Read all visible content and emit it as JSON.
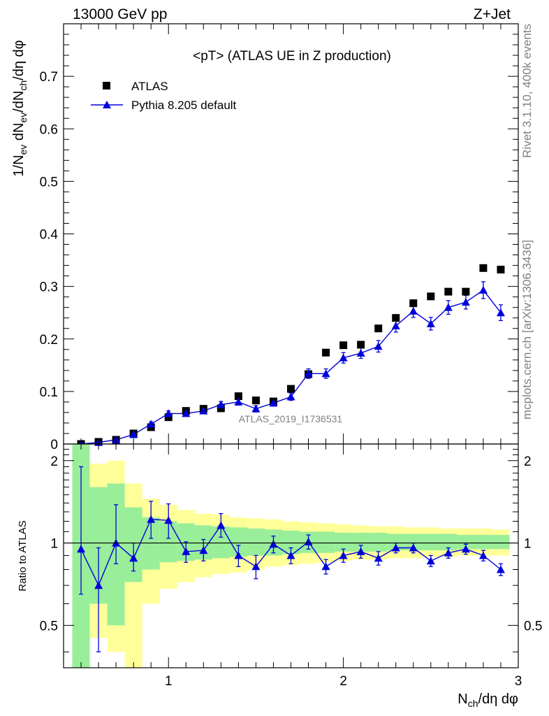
{
  "header": {
    "left": "13000 GeV pp",
    "right": "Z+Jet"
  },
  "side": {
    "rivet": "Rivet 3.1.10,  400k events",
    "mcplots": "mcplots.cern.ch [arXiv:1306.3436]"
  },
  "colors": {
    "mc": "#0000dd",
    "data": "#000000",
    "band_inner": "#99ee99",
    "band_outer": "#ffff99"
  },
  "chart_data": [
    {
      "type": "scatter",
      "title": "<pT> (ATLAS UE in Z production)",
      "analysis_label": "ATLAS_2019_I1736531",
      "xlabel": "N_ch/dη dφ",
      "ylabel": "1/N_ev dN_ev/dN_ch/dη dφ",
      "xlim": [
        0.4,
        3.0
      ],
      "ylim": [
        0,
        0.8
      ],
      "yticks": [
        0,
        0.1,
        0.2,
        0.3,
        0.4,
        0.5,
        0.6,
        0.7
      ],
      "ytick_labels": [
        "0",
        "0.1",
        "0.2",
        "0.3",
        "0.4",
        "0.5",
        "0.6",
        "0.7"
      ],
      "legend": [
        "ATLAS",
        "Pythia 8.205 default"
      ],
      "legend_position": "top-left",
      "x": [
        0.5,
        0.6,
        0.7,
        0.8,
        0.9,
        1.0,
        1.1,
        1.2,
        1.3,
        1.4,
        1.5,
        1.6,
        1.7,
        1.8,
        1.9,
        2.0,
        2.1,
        2.2,
        2.3,
        2.4,
        2.5,
        2.6,
        2.7,
        2.8,
        2.9
      ],
      "series": [
        {
          "name": "ATLAS",
          "values": [
            0.0,
            0.004,
            0.008,
            0.02,
            0.032,
            0.051,
            0.063,
            0.067,
            0.068,
            0.091,
            0.083,
            0.081,
            0.105,
            0.133,
            0.174,
            0.188,
            0.189,
            0.22,
            0.24,
            0.268,
            0.281,
            0.29,
            0.29,
            0.335,
            0.332
          ]
        },
        {
          "name": "Pythia 8.205 default",
          "values": [
            0.0,
            0.003,
            0.008,
            0.018,
            0.038,
            0.058,
            0.058,
            0.063,
            0.075,
            0.08,
            0.067,
            0.078,
            0.09,
            0.134,
            0.134,
            0.164,
            0.173,
            0.186,
            0.225,
            0.253,
            0.229,
            0.26,
            0.27,
            0.293,
            0.25
          ],
          "errors": [
            0.001,
            0.001,
            0.002,
            0.003,
            0.004,
            0.005,
            0.005,
            0.005,
            0.006,
            0.006,
            0.006,
            0.006,
            0.007,
            0.009,
            0.009,
            0.01,
            0.01,
            0.011,
            0.012,
            0.012,
            0.012,
            0.013,
            0.013,
            0.016,
            0.015
          ]
        }
      ]
    },
    {
      "type": "scatter",
      "ylabel": "Ratio to ATLAS",
      "xlabel": "N_ch/dη dφ",
      "xlim": [
        0.4,
        3.0
      ],
      "ylim": [
        0.35,
        2.3
      ],
      "yscale": "log",
      "yticks": [
        0.5,
        1,
        2
      ],
      "ytick_labels": [
        "0.5",
        "1",
        "2"
      ],
      "xticks": [
        1,
        2,
        3
      ],
      "xtick_labels": [
        "1",
        "2",
        "3"
      ],
      "reference": 1,
      "x": [
        0.5,
        0.6,
        0.7,
        0.8,
        0.9,
        1.0,
        1.1,
        1.2,
        1.3,
        1.4,
        1.5,
        1.6,
        1.7,
        1.8,
        1.9,
        2.0,
        2.1,
        2.2,
        2.3,
        2.4,
        2.5,
        2.6,
        2.7,
        2.8,
        2.9
      ],
      "bands": {
        "inner": [
          [
            0.2,
            3.0
          ],
          [
            0.6,
            1.6
          ],
          [
            0.5,
            1.65
          ],
          [
            0.72,
            1.35
          ],
          [
            0.8,
            1.24
          ],
          [
            0.85,
            1.2
          ],
          [
            0.86,
            1.18
          ],
          [
            0.87,
            1.16
          ],
          [
            0.88,
            1.15
          ],
          [
            0.89,
            1.14
          ],
          [
            0.9,
            1.13
          ],
          [
            0.9,
            1.12
          ],
          [
            0.91,
            1.11
          ],
          [
            0.92,
            1.1
          ],
          [
            0.92,
            1.1
          ],
          [
            0.93,
            1.09
          ],
          [
            0.93,
            1.09
          ],
          [
            0.93,
            1.09
          ],
          [
            0.94,
            1.08
          ],
          [
            0.94,
            1.08
          ],
          [
            0.94,
            1.08
          ],
          [
            0.94,
            1.08
          ],
          [
            0.95,
            1.07
          ],
          [
            0.95,
            1.07
          ],
          [
            0.95,
            1.07
          ]
        ],
        "outer": [
          [
            0.2,
            3.0
          ],
          [
            0.45,
            1.95
          ],
          [
            0.4,
            2.0
          ],
          [
            0.35,
            1.65
          ],
          [
            0.6,
            1.45
          ],
          [
            0.68,
            1.38
          ],
          [
            0.72,
            1.32
          ],
          [
            0.75,
            1.28
          ],
          [
            0.77,
            1.27
          ],
          [
            0.78,
            1.24
          ],
          [
            0.8,
            1.23
          ],
          [
            0.82,
            1.22
          ],
          [
            0.83,
            1.2
          ],
          [
            0.84,
            1.19
          ],
          [
            0.85,
            1.18
          ],
          [
            0.86,
            1.17
          ],
          [
            0.87,
            1.16
          ],
          [
            0.87,
            1.15
          ],
          [
            0.88,
            1.15
          ],
          [
            0.88,
            1.14
          ],
          [
            0.89,
            1.14
          ],
          [
            0.89,
            1.13
          ],
          [
            0.9,
            1.13
          ],
          [
            0.9,
            1.13
          ],
          [
            0.9,
            1.12
          ]
        ]
      },
      "series": [
        {
          "name": "Pythia 8.205 default",
          "values": [
            0.95,
            0.7,
            1.0,
            0.88,
            1.22,
            1.21,
            0.93,
            0.94,
            1.16,
            0.9,
            0.82,
            0.99,
            0.9,
            1.01,
            0.82,
            0.9,
            0.93,
            0.88,
            0.96,
            0.96,
            0.86,
            0.92,
            0.95,
            0.9,
            0.8
          ],
          "err_low": [
            0.3,
            0.3,
            0.16,
            0.09,
            0.18,
            0.17,
            0.08,
            0.08,
            0.11,
            0.08,
            0.08,
            0.07,
            0.06,
            0.06,
            0.05,
            0.05,
            0.05,
            0.05,
            0.04,
            0.04,
            0.04,
            0.04,
            0.04,
            0.04,
            0.04
          ],
          "err_high": [
            0.95,
            0.26,
            0.38,
            0.12,
            0.2,
            0.18,
            0.08,
            0.09,
            0.12,
            0.08,
            0.08,
            0.07,
            0.06,
            0.06,
            0.05,
            0.05,
            0.05,
            0.05,
            0.04,
            0.04,
            0.04,
            0.04,
            0.04,
            0.04,
            0.04
          ]
        }
      ]
    }
  ]
}
